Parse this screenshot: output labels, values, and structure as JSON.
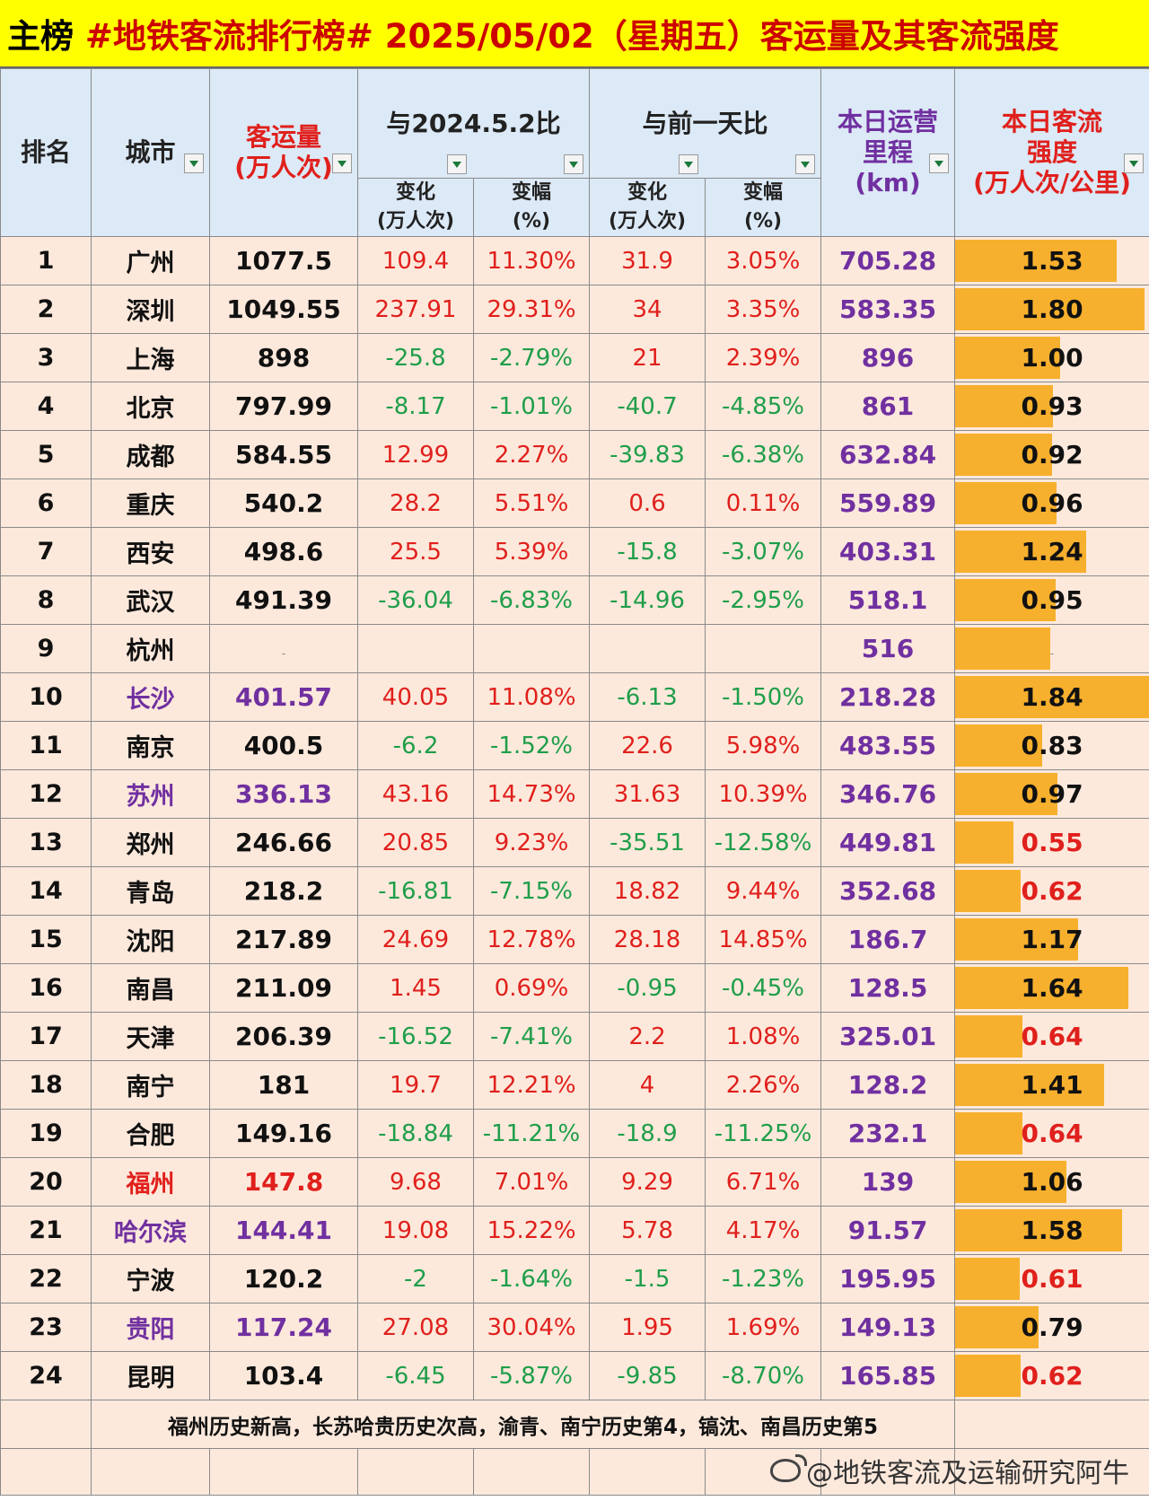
{
  "title": {
    "lead": "主榜",
    "text": " #地铁客流排行榜# 2025/05/02（星期五）客运量及其客流强度"
  },
  "headers": {
    "rank": "排名",
    "city": "城市",
    "flow_line1": "客运量",
    "flow_line2": "(万人次)",
    "vs_last_year": "与2024.5.2比",
    "vs_prev_day": "与前一天比",
    "change_line1": "变化",
    "change_line2": "(万人次)",
    "pct_line1": "变幅",
    "pct_line2": "(%)",
    "mileage_line1": "本日运营",
    "mileage_line2": "里程",
    "mileage_line3": "(km)",
    "intensity_line1": "本日客流",
    "intensity_line2": "强度",
    "intensity_line3": "(万人次/公里)"
  },
  "colors": {
    "title_bg": "#ffff00",
    "header_bg": "#dce9f6",
    "row_bg": "#fde9dc",
    "bar": "#f7b02e",
    "red": "#e0201c",
    "green": "#1f9e4a",
    "purple": "#7030a0"
  },
  "intensity_bar_max": 1.84,
  "rows": [
    {
      "rank": "1",
      "city": "广州",
      "city_color": "black",
      "flow": "1077.5",
      "yoy_chg": "109.4",
      "yoy_pct": "11.30%",
      "yoy_color": "red",
      "dod_chg": "31.9",
      "dod_pct": "3.05%",
      "dod_color": "red",
      "mileage": "705.28",
      "intensity": "1.53",
      "intensity_value": 1.53,
      "intensity_color": "black"
    },
    {
      "rank": "2",
      "city": "深圳",
      "city_color": "black",
      "flow": "1049.55",
      "yoy_chg": "237.91",
      "yoy_pct": "29.31%",
      "yoy_color": "red",
      "dod_chg": "34",
      "dod_pct": "3.35%",
      "dod_color": "red",
      "mileage": "583.35",
      "intensity": "1.80",
      "intensity_value": 1.8,
      "intensity_color": "black"
    },
    {
      "rank": "3",
      "city": "上海",
      "city_color": "black",
      "flow": "898",
      "yoy_chg": "-25.8",
      "yoy_pct": "-2.79%",
      "yoy_color": "green",
      "dod_chg": "21",
      "dod_pct": "2.39%",
      "dod_color": "red",
      "mileage": "896",
      "intensity": "1.00",
      "intensity_value": 1.0,
      "intensity_color": "black"
    },
    {
      "rank": "4",
      "city": "北京",
      "city_color": "black",
      "flow": "797.99",
      "yoy_chg": "-8.17",
      "yoy_pct": "-1.01%",
      "yoy_color": "green",
      "dod_chg": "-40.7",
      "dod_pct": "-4.85%",
      "dod_color": "green",
      "mileage": "861",
      "intensity": "0.93",
      "intensity_value": 0.93,
      "intensity_color": "black"
    },
    {
      "rank": "5",
      "city": "成都",
      "city_color": "black",
      "flow": "584.55",
      "yoy_chg": "12.99",
      "yoy_pct": "2.27%",
      "yoy_color": "red",
      "dod_chg": "-39.83",
      "dod_pct": "-6.38%",
      "dod_color": "green",
      "mileage": "632.84",
      "intensity": "0.92",
      "intensity_value": 0.92,
      "intensity_color": "black"
    },
    {
      "rank": "6",
      "city": "重庆",
      "city_color": "black",
      "flow": "540.2",
      "yoy_chg": "28.2",
      "yoy_pct": "5.51%",
      "yoy_color": "red",
      "dod_chg": "0.6",
      "dod_pct": "0.11%",
      "dod_color": "red",
      "mileage": "559.89",
      "intensity": "0.96",
      "intensity_value": 0.96,
      "intensity_color": "black"
    },
    {
      "rank": "7",
      "city": "西安",
      "city_color": "black",
      "flow": "498.6",
      "yoy_chg": "25.5",
      "yoy_pct": "5.39%",
      "yoy_color": "red",
      "dod_chg": "-15.8",
      "dod_pct": "-3.07%",
      "dod_color": "green",
      "mileage": "403.31",
      "intensity": "1.24",
      "intensity_value": 1.24,
      "intensity_color": "black"
    },
    {
      "rank": "8",
      "city": "武汉",
      "city_color": "black",
      "flow": "491.39",
      "yoy_chg": "-36.04",
      "yoy_pct": "-6.83%",
      "yoy_color": "green",
      "dod_chg": "-14.96",
      "dod_pct": "-2.95%",
      "dod_color": "green",
      "mileage": "518.1",
      "intensity": "0.95",
      "intensity_value": 0.95,
      "intensity_color": "black"
    },
    {
      "rank": "9",
      "city": "杭州",
      "city_color": "black",
      "flow": "-",
      "flow_dash": true,
      "yoy_chg": "",
      "yoy_pct": "",
      "yoy_color": "red",
      "dod_chg": "",
      "dod_pct": "",
      "dod_color": "red",
      "mileage": "516",
      "intensity": "-",
      "intensity_value": 0.9,
      "intensity_color": "black",
      "intensity_dash": true
    },
    {
      "rank": "10",
      "city": "长沙",
      "city_color": "purple",
      "flow": "401.57",
      "yoy_chg": "40.05",
      "yoy_pct": "11.08%",
      "yoy_color": "red",
      "dod_chg": "-6.13",
      "dod_pct": "-1.50%",
      "dod_color": "green",
      "mileage": "218.28",
      "intensity": "1.84",
      "intensity_value": 1.84,
      "intensity_color": "black"
    },
    {
      "rank": "11",
      "city": "南京",
      "city_color": "black",
      "flow": "400.5",
      "yoy_chg": "-6.2",
      "yoy_pct": "-1.52%",
      "yoy_color": "green",
      "dod_chg": "22.6",
      "dod_pct": "5.98%",
      "dod_color": "red",
      "mileage": "483.55",
      "intensity": "0.83",
      "intensity_value": 0.83,
      "intensity_color": "black"
    },
    {
      "rank": "12",
      "city": "苏州",
      "city_color": "purple",
      "flow": "336.13",
      "yoy_chg": "43.16",
      "yoy_pct": "14.73%",
      "yoy_color": "red",
      "dod_chg": "31.63",
      "dod_pct": "10.39%",
      "dod_color": "red",
      "mileage": "346.76",
      "intensity": "0.97",
      "intensity_value": 0.97,
      "intensity_color": "black"
    },
    {
      "rank": "13",
      "city": "郑州",
      "city_color": "black",
      "flow": "246.66",
      "yoy_chg": "20.85",
      "yoy_pct": "9.23%",
      "yoy_color": "red",
      "dod_chg": "-35.51",
      "dod_pct": "-12.58%",
      "dod_color": "green",
      "mileage": "449.81",
      "intensity": "0.55",
      "intensity_value": 0.55,
      "intensity_color": "red"
    },
    {
      "rank": "14",
      "city": "青岛",
      "city_color": "black",
      "flow": "218.2",
      "yoy_chg": "-16.81",
      "yoy_pct": "-7.15%",
      "yoy_color": "green",
      "dod_chg": "18.82",
      "dod_pct": "9.44%",
      "dod_color": "red",
      "mileage": "352.68",
      "intensity": "0.62",
      "intensity_value": 0.62,
      "intensity_color": "red"
    },
    {
      "rank": "15",
      "city": "沈阳",
      "city_color": "black",
      "flow": "217.89",
      "yoy_chg": "24.69",
      "yoy_pct": "12.78%",
      "yoy_color": "red",
      "dod_chg": "28.18",
      "dod_pct": "14.85%",
      "dod_color": "red",
      "mileage": "186.7",
      "intensity": "1.17",
      "intensity_value": 1.17,
      "intensity_color": "black"
    },
    {
      "rank": "16",
      "city": "南昌",
      "city_color": "black",
      "flow": "211.09",
      "yoy_chg": "1.45",
      "yoy_pct": "0.69%",
      "yoy_color": "red",
      "dod_chg": "-0.95",
      "dod_pct": "-0.45%",
      "dod_color": "green",
      "mileage": "128.5",
      "intensity": "1.64",
      "intensity_value": 1.64,
      "intensity_color": "black"
    },
    {
      "rank": "17",
      "city": "天津",
      "city_color": "black",
      "flow": "206.39",
      "yoy_chg": "-16.52",
      "yoy_pct": "-7.41%",
      "yoy_color": "green",
      "dod_chg": "2.2",
      "dod_pct": "1.08%",
      "dod_color": "red",
      "mileage": "325.01",
      "intensity": "0.64",
      "intensity_value": 0.64,
      "intensity_color": "red"
    },
    {
      "rank": "18",
      "city": "南宁",
      "city_color": "black",
      "flow": "181",
      "yoy_chg": "19.7",
      "yoy_pct": "12.21%",
      "yoy_color": "red",
      "dod_chg": "4",
      "dod_pct": "2.26%",
      "dod_color": "red",
      "mileage": "128.2",
      "intensity": "1.41",
      "intensity_value": 1.41,
      "intensity_color": "black"
    },
    {
      "rank": "19",
      "city": "合肥",
      "city_color": "black",
      "flow": "149.16",
      "yoy_chg": "-18.84",
      "yoy_pct": "-11.21%",
      "yoy_color": "green",
      "dod_chg": "-18.9",
      "dod_pct": "-11.25%",
      "dod_color": "green",
      "mileage": "232.1",
      "intensity": "0.64",
      "intensity_value": 0.64,
      "intensity_color": "red"
    },
    {
      "rank": "20",
      "city": "福州",
      "city_color": "red",
      "flow": "147.8",
      "yoy_chg": "9.68",
      "yoy_pct": "7.01%",
      "yoy_color": "red",
      "dod_chg": "9.29",
      "dod_pct": "6.71%",
      "dod_color": "red",
      "mileage": "139",
      "intensity": "1.06",
      "intensity_value": 1.06,
      "intensity_color": "black"
    },
    {
      "rank": "21",
      "city": "哈尔滨",
      "city_color": "purple",
      "flow": "144.41",
      "yoy_chg": "19.08",
      "yoy_pct": "15.22%",
      "yoy_color": "red",
      "dod_chg": "5.78",
      "dod_pct": "4.17%",
      "dod_color": "red",
      "mileage": "91.57",
      "intensity": "1.58",
      "intensity_value": 1.58,
      "intensity_color": "black"
    },
    {
      "rank": "22",
      "city": "宁波",
      "city_color": "black",
      "flow": "120.2",
      "yoy_chg": "-2",
      "yoy_pct": "-1.64%",
      "yoy_color": "green",
      "dod_chg": "-1.5",
      "dod_pct": "-1.23%",
      "dod_color": "green",
      "mileage": "195.95",
      "intensity": "0.61",
      "intensity_value": 0.61,
      "intensity_color": "red"
    },
    {
      "rank": "23",
      "city": "贵阳",
      "city_color": "purple",
      "flow": "117.24",
      "yoy_chg": "27.08",
      "yoy_pct": "30.04%",
      "yoy_color": "red",
      "dod_chg": "1.95",
      "dod_pct": "1.69%",
      "dod_color": "red",
      "mileage": "149.13",
      "intensity": "0.79",
      "intensity_value": 0.79,
      "intensity_color": "black"
    },
    {
      "rank": "24",
      "city": "昆明",
      "city_color": "black",
      "flow": "103.4",
      "yoy_chg": "-6.45",
      "yoy_pct": "-5.87%",
      "yoy_color": "green",
      "dod_chg": "-9.85",
      "dod_pct": "-8.70%",
      "dod_color": "green",
      "mileage": "165.85",
      "intensity": "0.62",
      "intensity_value": 0.62,
      "intensity_color": "red"
    }
  ],
  "note": "福州历史新高，长苏哈贵历史次高，渝青、南宁历史第4，镐沈、南昌历史第5",
  "watermark": "@地铁客流及运输研究阿牛"
}
